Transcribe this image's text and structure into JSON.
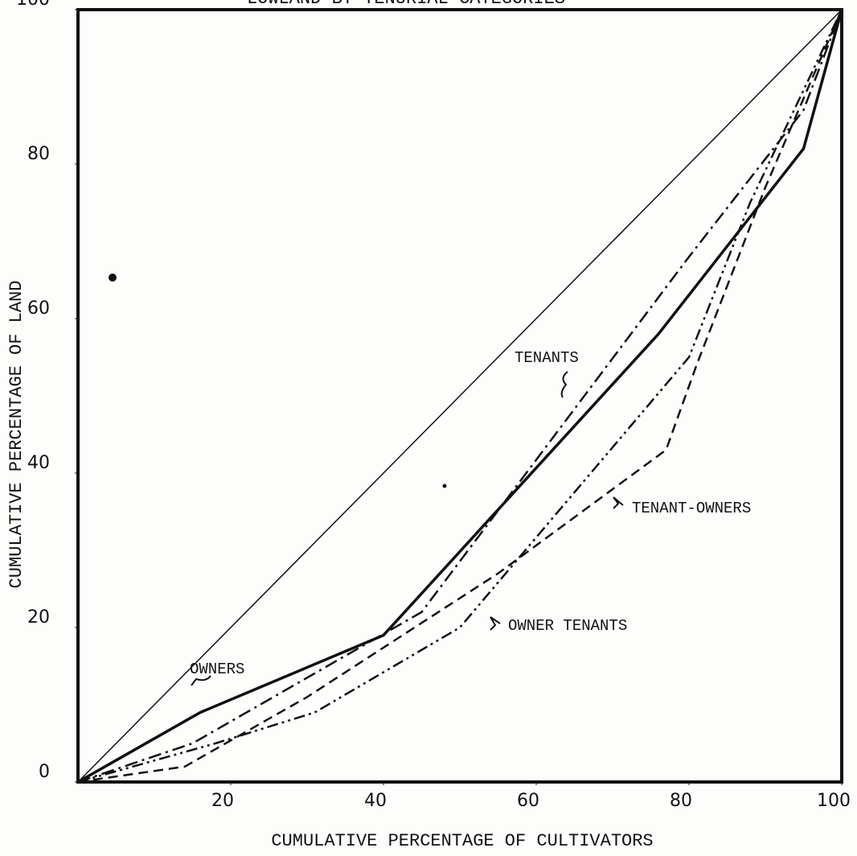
{
  "chart_data": {
    "type": "line",
    "title": "LOWLAND BY TENURIAL CATEGORIES",
    "x_label": "CUMULATIVE PERCENTAGE OF CULTIVATORS",
    "y_label": "CUMULATIVE PERCENTAGE OF LAND",
    "xlim": [
      0,
      100
    ],
    "ylim": [
      0,
      100
    ],
    "xticks": [
      20,
      40,
      60,
      80,
      100
    ],
    "yticks": [
      0,
      20,
      40,
      60,
      80,
      100
    ],
    "grid": false,
    "series": [
      {
        "color": "#111111",
        "style": "solid",
        "width": 1.5,
        "x": [
          0,
          100
        ],
        "values": [
          0,
          100
        ]
      },
      {
        "name": "OWNERS",
        "color": "#111111",
        "style": "solid",
        "width": 3.5,
        "x": [
          0,
          16,
          40,
          76,
          95,
          100
        ],
        "values": [
          0,
          9,
          19,
          58,
          82,
          100
        ]
      },
      {
        "name": "TENANTS",
        "color": "#111111",
        "style": "dashdot",
        "width": 2.5,
        "x": [
          0,
          15,
          45,
          80,
          95,
          100
        ],
        "values": [
          0,
          5,
          22,
          68,
          87,
          100
        ]
      },
      {
        "name": "TENANT-OWNERS",
        "color": "#111111",
        "style": "dashed",
        "width": 2.5,
        "x": [
          0,
          14,
          30,
          55,
          77,
          81,
          90,
          100
        ],
        "values": [
          0,
          2,
          11,
          27,
          43,
          54,
          77,
          100
        ]
      },
      {
        "name": "OWNER TENANTS",
        "color": "#111111",
        "style": "dashdotdot",
        "width": 2.5,
        "x": [
          0,
          18,
          31,
          50,
          62,
          80,
          88,
          100
        ],
        "values": [
          0,
          5,
          9,
          20,
          34,
          55,
          75,
          100
        ]
      }
    ]
  }
}
